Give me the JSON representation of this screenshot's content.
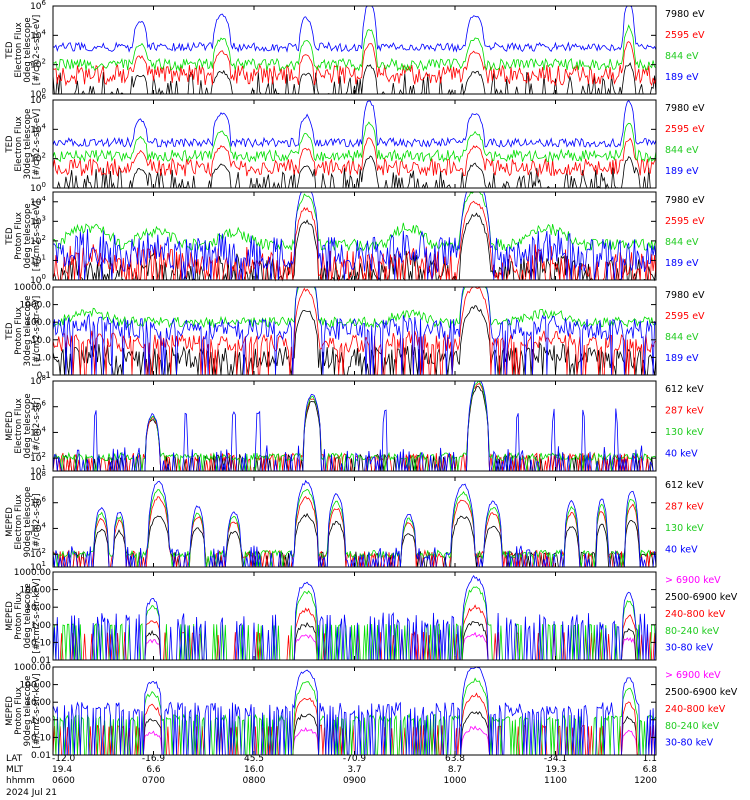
{
  "chart_data": [
    {
      "type": "line",
      "ylabel": [
        "TED",
        "Electron Flux",
        "0deg telescope",
        "[#/cm2-s-str-eV]"
      ],
      "ytick_labels": [
        "10^0",
        "10^2",
        "10^4",
        "10^6"
      ],
      "ylim_log10": [
        0,
        6
      ],
      "series": [
        {
          "name": "7980 eV",
          "color": "#000000",
          "baseline": 0.3,
          "noise": 1.2,
          "density": 0.4,
          "peak_scale": 0.55
        },
        {
          "name": "2595 eV",
          "color": "#ff0000",
          "baseline": 1.3,
          "noise": 0.7,
          "density": 1.0,
          "peak_scale": 0.7
        },
        {
          "name": "844 eV",
          "color": "#00dd00",
          "baseline": 2.0,
          "noise": 0.4,
          "density": 1.0,
          "peak_scale": 0.8
        },
        {
          "name": "189 eV",
          "color": "#0000ff",
          "baseline": 3.2,
          "noise": 0.3,
          "density": 1.0,
          "peak_scale": 1.0
        }
      ],
      "peaks": [
        [
          0.145,
          0.012,
          1.8
        ],
        [
          0.28,
          0.015,
          2.2
        ],
        [
          0.42,
          0.012,
          2.0
        ],
        [
          0.525,
          0.012,
          3.0
        ],
        [
          0.7,
          0.015,
          2.2
        ],
        [
          0.955,
          0.01,
          3.2
        ]
      ]
    },
    {
      "type": "line",
      "ylabel": [
        "TED",
        "Electron Flux",
        "30deg telescope",
        "[#/cm2-s-str-eV]"
      ],
      "ytick_labels": [
        "10^0",
        "10^2",
        "10^4",
        "10^6"
      ],
      "ylim_log10": [
        0,
        6
      ],
      "series": [
        {
          "name": "7980 eV",
          "color": "#000000",
          "baseline": 0.4,
          "noise": 1.0,
          "density": 0.5,
          "peak_scale": 0.6
        },
        {
          "name": "2595 eV",
          "color": "#ff0000",
          "baseline": 1.4,
          "noise": 0.6,
          "density": 1.0,
          "peak_scale": 0.7
        },
        {
          "name": "844 eV",
          "color": "#00dd00",
          "baseline": 2.2,
          "noise": 0.4,
          "density": 1.0,
          "peak_scale": 0.8
        },
        {
          "name": "189 eV",
          "color": "#0000ff",
          "baseline": 3.1,
          "noise": 0.3,
          "density": 1.0,
          "peak_scale": 1.0
        }
      ],
      "peaks": [
        [
          0.145,
          0.012,
          1.5
        ],
        [
          0.28,
          0.015,
          2.0
        ],
        [
          0.42,
          0.012,
          1.8
        ],
        [
          0.525,
          0.012,
          2.8
        ],
        [
          0.7,
          0.015,
          2.0
        ],
        [
          0.955,
          0.01,
          2.8
        ]
      ]
    },
    {
      "type": "line",
      "ylabel": [
        "TED",
        "Proton Flux",
        "0deg telescope",
        "[#/cm2-s-str-eV]"
      ],
      "ytick_labels": [
        "10^0",
        "10^1",
        "10^2",
        "10^3",
        "10^4"
      ],
      "ylim_log10": [
        0,
        4.5
      ],
      "series": [
        {
          "name": "7980 eV",
          "color": "#000000",
          "baseline": 0.3,
          "noise": 0.8,
          "density": 0.8,
          "peak_scale": 0.75
        },
        {
          "name": "2595 eV",
          "color": "#ff0000",
          "baseline": 0.8,
          "noise": 0.7,
          "density": 0.7,
          "peak_scale": 0.8
        },
        {
          "name": "844 eV",
          "color": "#00dd00",
          "baseline": 1.8,
          "noise": 0.3,
          "density": 1.0,
          "peak_scale": 0.7
        },
        {
          "name": "189 eV",
          "color": "#0000ff",
          "baseline": 1.3,
          "noise": 0.9,
          "density": 0.9,
          "peak_scale": 1.0
        }
      ],
      "peaks": [
        [
          0.42,
          0.02,
          3.6
        ],
        [
          0.7,
          0.025,
          4.0
        ]
      ],
      "bumps": [
        [
          0.06,
          0.05,
          0.9
        ],
        [
          0.17,
          0.04,
          0.7
        ],
        [
          0.3,
          0.04,
          0.6
        ],
        [
          0.59,
          0.04,
          0.9
        ],
        [
          0.82,
          0.05,
          0.8
        ]
      ]
    },
    {
      "type": "line",
      "ylabel": [
        "TED",
        "Proton Flux",
        "30deg telescope",
        "[#/cm2-s-str-eV]"
      ],
      "ytick_labels": [
        "0.1",
        "1.0",
        "10.0",
        "100.0",
        "1000.0",
        "10000.0"
      ],
      "ylim_log10": [
        -1,
        4
      ],
      "series": [
        {
          "name": "7980 eV",
          "color": "#000000",
          "baseline": 0.0,
          "noise": 0.6,
          "density": 0.8,
          "peak_scale": 0.75
        },
        {
          "name": "2595 eV",
          "color": "#ff0000",
          "baseline": 0.8,
          "noise": 0.5,
          "density": 0.8,
          "peak_scale": 0.85
        },
        {
          "name": "844 eV",
          "color": "#00dd00",
          "baseline": 2.0,
          "noise": 0.3,
          "density": 1.0,
          "peak_scale": 0.75
        },
        {
          "name": "189 eV",
          "color": "#0000ff",
          "baseline": 1.6,
          "noise": 0.6,
          "density": 0.9,
          "peak_scale": 1.0
        }
      ],
      "peaks": [
        [
          0.42,
          0.02,
          3.6
        ],
        [
          0.7,
          0.025,
          3.8
        ]
      ],
      "bumps": [
        [
          0.06,
          0.05,
          0.5
        ],
        [
          0.59,
          0.04,
          0.5
        ],
        [
          0.82,
          0.05,
          0.5
        ]
      ]
    },
    {
      "type": "line",
      "ylabel": [
        "MEPED",
        "Electron Flux",
        "0deg telescope",
        "[#/cm2-s-str]"
      ],
      "ytick_labels": [
        "10^1",
        "10^2",
        "10^4",
        "10^6",
        "10^8"
      ],
      "ylim_log10": [
        1,
        8
      ],
      "series": [
        {
          "name": "612 keV",
          "color": "#000000",
          "baseline": 2.1,
          "noise": 0.2,
          "density": 0.3,
          "peak_scale": 0.9
        },
        {
          "name": "287 keV",
          "color": "#ff0000",
          "baseline": 2.1,
          "noise": 0.3,
          "density": 0.5,
          "peak_scale": 0.95
        },
        {
          "name": "130 keV",
          "color": "#00dd00",
          "baseline": 2.1,
          "noise": 0.3,
          "density": 0.9,
          "peak_scale": 0.97
        },
        {
          "name": "40 keV",
          "color": "#0000ff",
          "baseline": 2.2,
          "noise": 0.8,
          "density": 0.3,
          "peak_scale": 1.0
        }
      ],
      "peaks": [
        [
          0.165,
          0.012,
          3.2
        ],
        [
          0.43,
          0.015,
          4.8
        ],
        [
          0.705,
          0.018,
          6.0
        ]
      ],
      "spikes": [
        0.07,
        0.22,
        0.3,
        0.34,
        0.55,
        0.77,
        0.83,
        0.88,
        0.935
      ]
    },
    {
      "type": "line",
      "ylabel": [
        "MEPED",
        "Electron Flux",
        "90deg telescope",
        "[#/cm2-s-str]"
      ],
      "ytick_labels": [
        "10^1",
        "10^2",
        "10^4",
        "10^6",
        "10^8"
      ],
      "ylim_log10": [
        1,
        8
      ],
      "series": [
        {
          "name": "612 keV",
          "color": "#000000",
          "baseline": 2.0,
          "noise": 0.2,
          "density": 0.4,
          "peak_scale": 0.55
        },
        {
          "name": "287 keV",
          "color": "#ff0000",
          "baseline": 2.0,
          "noise": 0.3,
          "density": 0.5,
          "peak_scale": 0.8
        },
        {
          "name": "130 keV",
          "color": "#00dd00",
          "baseline": 2.0,
          "noise": 0.3,
          "density": 0.9,
          "peak_scale": 0.9
        },
        {
          "name": "40 keV",
          "color": "#0000ff",
          "baseline": 2.1,
          "noise": 0.6,
          "density": 0.4,
          "peak_scale": 1.0
        }
      ],
      "peaks": [
        [
          0.08,
          0.012,
          3.5
        ],
        [
          0.11,
          0.01,
          3.2
        ],
        [
          0.175,
          0.018,
          5.5
        ],
        [
          0.24,
          0.012,
          3.6
        ],
        [
          0.3,
          0.012,
          3.2
        ],
        [
          0.42,
          0.02,
          5.5
        ],
        [
          0.47,
          0.015,
          4.5
        ],
        [
          0.59,
          0.012,
          3.0
        ],
        [
          0.68,
          0.02,
          5.3
        ],
        [
          0.73,
          0.015,
          4.0
        ],
        [
          0.86,
          0.012,
          4.0
        ],
        [
          0.91,
          0.01,
          4.2
        ],
        [
          0.96,
          0.012,
          4.8
        ]
      ]
    },
    {
      "type": "line",
      "ylabel": [
        "MEPED",
        "Proton Flux",
        "0deg telescope",
        "[#/cm2-s-str-keV]"
      ],
      "ytick_labels": [
        "0.01",
        "0.10",
        "1.00",
        "10.00",
        "100.00",
        "1000.00"
      ],
      "ylim_log10": [
        -2,
        3
      ],
      "series": [
        {
          "name": "> 6900 keV",
          "color": "#ff00ff",
          "baseline": -1.2,
          "noise": 0.05,
          "density": 0.0,
          "peak_scale": 0.25
        },
        {
          "name": "2500-6900 keV",
          "color": "#000000",
          "baseline": -1.0,
          "noise": 0.05,
          "density": 0.0,
          "peak_scale": 0.45
        },
        {
          "name": "240-800 keV",
          "color": "#ff0000",
          "baseline": -0.5,
          "noise": 0.1,
          "density": 0.15,
          "peak_scale": 0.6
        },
        {
          "name": "80-240 keV",
          "color": "#00dd00",
          "baseline": 0.0,
          "noise": 0.05,
          "density": 0.3,
          "peak_scale": 0.85
        },
        {
          "name": "30-80 keV",
          "color": "#0000ff",
          "baseline": 0.2,
          "noise": 0.5,
          "density": 0.3,
          "peak_scale": 1.0
        }
      ],
      "peaks": [
        [
          0.165,
          0.012,
          1.2
        ],
        [
          0.42,
          0.018,
          2.2
        ],
        [
          0.7,
          0.02,
          2.5
        ],
        [
          0.955,
          0.01,
          1.6
        ]
      ]
    },
    {
      "type": "line",
      "ylabel": [
        "MEPED",
        "Proton Flux",
        "90deg telescope",
        "[#/cm2-s-str-keV]"
      ],
      "ytick_labels": [
        "0.01",
        "0.10",
        "1.00",
        "10.00",
        "100.00",
        "1000.00"
      ],
      "ylim_log10": [
        -2,
        3
      ],
      "series": [
        {
          "name": "> 6900 keV",
          "color": "#ff00ff",
          "baseline": -1.3,
          "noise": 0.05,
          "density": 0.0,
          "peak_scale": 0.35
        },
        {
          "name": "2500-6900 keV",
          "color": "#000000",
          "baseline": -0.8,
          "noise": 0.05,
          "density": 0.0,
          "peak_scale": 0.5
        },
        {
          "name": "240-800 keV",
          "color": "#ff0000",
          "baseline": -0.4,
          "noise": 0.1,
          "density": 0.2,
          "peak_scale": 0.75
        },
        {
          "name": "80-240 keV",
          "color": "#00dd00",
          "baseline": 0.1,
          "noise": 0.2,
          "density": 0.6,
          "peak_scale": 0.9
        },
        {
          "name": "30-80 keV",
          "color": "#0000ff",
          "baseline": 0.6,
          "noise": 0.4,
          "density": 0.6,
          "peak_scale": 1.0
        }
      ],
      "peaks": [
        [
          0.165,
          0.015,
          1.6
        ],
        [
          0.42,
          0.02,
          2.2
        ],
        [
          0.7,
          0.022,
          2.4
        ],
        [
          0.955,
          0.012,
          1.8
        ]
      ]
    }
  ],
  "x_axis": {
    "row_labels": [
      "LAT",
      "MLT",
      "hhmm"
    ],
    "ticks": [
      {
        "lat": "-12.0",
        "mlt": "19.4",
        "hhmm": "0600"
      },
      {
        "lat": "-16.9",
        "mlt": "6.6",
        "hhmm": "0700"
      },
      {
        "lat": "45.5",
        "mlt": "16.0",
        "hhmm": "0800"
      },
      {
        "lat": "-70.9",
        "mlt": "3.7",
        "hhmm": "0900"
      },
      {
        "lat": "63.8",
        "mlt": "8.7",
        "hhmm": "1000"
      },
      {
        "lat": "-34.1",
        "mlt": "19.3",
        "hhmm": "1100"
      },
      {
        "lat": "1.1",
        "mlt": "6.8",
        "hhmm": "1200"
      }
    ],
    "date": "2024 Jul 21"
  }
}
